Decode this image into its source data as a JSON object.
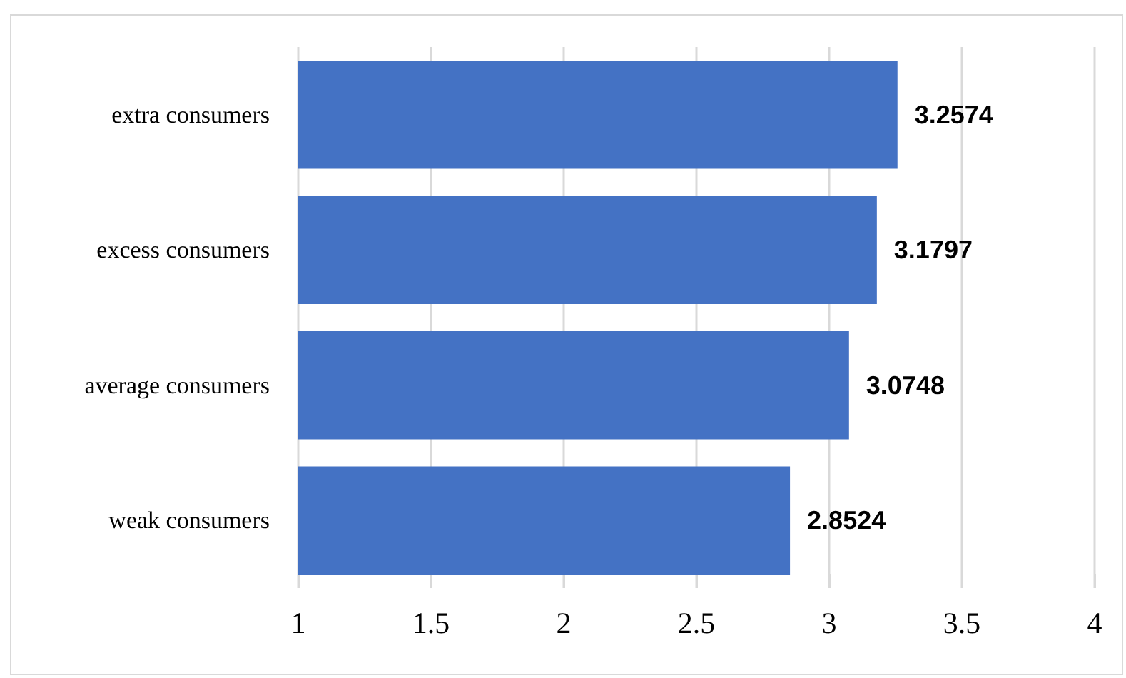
{
  "chart_data": {
    "type": "bar",
    "orientation": "horizontal",
    "categories": [
      "extra consumers",
      "excess consumers",
      "average consumers",
      "weak consumers"
    ],
    "values": [
      3.2574,
      3.1797,
      3.0748,
      2.8524
    ],
    "color": "#4472c4",
    "xlim": [
      1,
      4
    ],
    "xticks": [
      1,
      1.5,
      2,
      2.5,
      3,
      3.5,
      4
    ],
    "grid": "x",
    "data_labels": true
  }
}
